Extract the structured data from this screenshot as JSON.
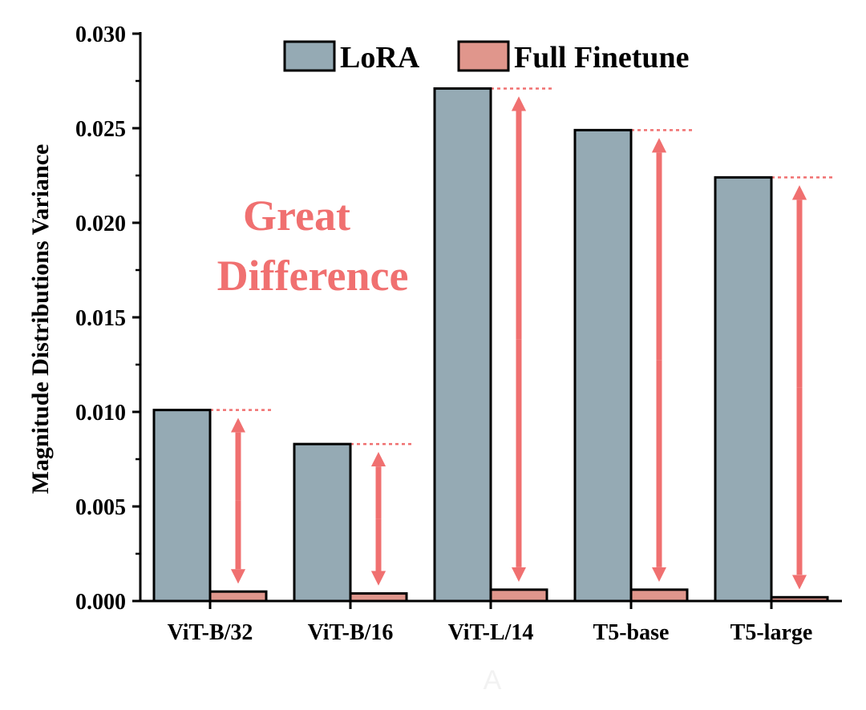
{
  "chart_data": {
    "type": "bar",
    "categories": [
      "ViT-B/32",
      "ViT-B/16",
      "ViT-L/14",
      "T5-base",
      "T5-large"
    ],
    "series": [
      {
        "name": "LoRA",
        "values": [
          0.0101,
          0.0083,
          0.0271,
          0.0249,
          0.0224
        ],
        "color": "#95aab4"
      },
      {
        "name": "Full Finetune",
        "values": [
          0.0005,
          0.0004,
          0.0006,
          0.0006,
          0.0002
        ],
        "color": "#e0968c"
      }
    ],
    "title": "",
    "xlabel": "",
    "ylabel": "Magnitude Distributions Variance",
    "ylim": [
      0,
      0.03
    ],
    "yticks": [
      "0.000",
      "0.005",
      "0.010",
      "0.015",
      "0.020",
      "0.025",
      "0.030"
    ],
    "grid": false,
    "legend_position": "top-right",
    "annotation": {
      "lines": [
        "Great",
        "Difference"
      ],
      "color": "#f07070"
    },
    "arrow_color": "#f07070",
    "caption": "A",
    "caption_color": "#f2f2f2"
  }
}
